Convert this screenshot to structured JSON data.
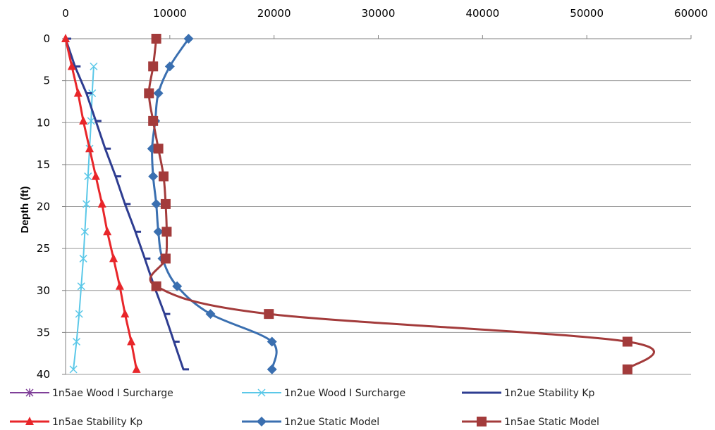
{
  "chart_data": {
    "type": "line",
    "title": "",
    "xlabel": "",
    "ylabel": "Depth (ft)",
    "x_axis_position": "top",
    "xlim": [
      0,
      60000
    ],
    "ylim": [
      0,
      40
    ],
    "y_inverted": true,
    "x_ticks": [
      0,
      10000,
      20000,
      30000,
      40000,
      50000,
      60000
    ],
    "y_ticks": [
      0,
      5,
      10,
      15,
      20,
      25,
      30,
      35,
      40
    ],
    "grid": "horizontal",
    "legend_position": "bottom",
    "series": [
      {
        "name": "1n5ae Wood I Surcharge",
        "color": "#7F3F98",
        "marker": "star",
        "curve": "straight",
        "points": []
      },
      {
        "name": "1n2ue Wood I Surcharge",
        "color": "#5BC8E8",
        "marker": "x",
        "curve": "straight",
        "points": [
          [
            2700,
            3.3
          ],
          [
            2550,
            6.5
          ],
          [
            2450,
            9.8
          ],
          [
            2300,
            13.1
          ],
          [
            2150,
            16.4
          ],
          [
            2000,
            19.7
          ],
          [
            1850,
            23
          ],
          [
            1700,
            26.2
          ],
          [
            1500,
            29.5
          ],
          [
            1300,
            32.8
          ],
          [
            1050,
            36.1
          ],
          [
            750,
            39.4
          ]
        ]
      },
      {
        "name": "1n2ue Stability Kp",
        "color": "#2E3D91",
        "marker": "dash",
        "curve": "straight",
        "points": [
          [
            0,
            0
          ],
          [
            900,
            3.3
          ],
          [
            2000,
            6.5
          ],
          [
            2900,
            9.8
          ],
          [
            3800,
            13.1
          ],
          [
            4800,
            16.4
          ],
          [
            5700,
            19.7
          ],
          [
            6700,
            23
          ],
          [
            7600,
            26.2
          ],
          [
            8500,
            29.5
          ],
          [
            9500,
            32.8
          ],
          [
            10400,
            36.1
          ],
          [
            11300,
            39.4
          ]
        ]
      },
      {
        "name": "1n5ae Stability Kp",
        "color": "#E8262A",
        "marker": "triangle",
        "curve": "straight",
        "points": [
          [
            0,
            0
          ],
          [
            600,
            3.3
          ],
          [
            1200,
            6.5
          ],
          [
            1700,
            9.8
          ],
          [
            2300,
            13.1
          ],
          [
            2900,
            16.4
          ],
          [
            3500,
            19.7
          ],
          [
            4000,
            23
          ],
          [
            4600,
            26.2
          ],
          [
            5200,
            29.5
          ],
          [
            5700,
            32.8
          ],
          [
            6300,
            36.1
          ],
          [
            6800,
            39.4
          ]
        ]
      },
      {
        "name": "1n2ue Static Model",
        "color": "#3A6FB0",
        "marker": "diamond",
        "curve": "smooth",
        "points": [
          [
            11800,
            0
          ],
          [
            10000,
            3.3
          ],
          [
            8900,
            6.5
          ],
          [
            8600,
            9.8
          ],
          [
            8300,
            13.1
          ],
          [
            8400,
            16.4
          ],
          [
            8700,
            19.7
          ],
          [
            8900,
            23
          ],
          [
            9300,
            26.2
          ],
          [
            10700,
            29.5
          ],
          [
            13900,
            32.8
          ],
          [
            19800,
            36.1
          ],
          [
            19800,
            39.4
          ]
        ]
      },
      {
        "name": "1n5ae Static Model",
        "color": "#A33B3B",
        "marker": "square",
        "curve": "smooth",
        "points": [
          [
            8700,
            0
          ],
          [
            8400,
            3.3
          ],
          [
            8000,
            6.5
          ],
          [
            8400,
            9.8
          ],
          [
            8900,
            13.1
          ],
          [
            9400,
            16.4
          ],
          [
            9600,
            19.7
          ],
          [
            9700,
            23
          ],
          [
            9600,
            26.2
          ],
          [
            8700,
            29.5
          ],
          [
            19500,
            32.8
          ],
          [
            53900,
            36.1
          ],
          [
            53900,
            39.4
          ]
        ]
      }
    ]
  }
}
